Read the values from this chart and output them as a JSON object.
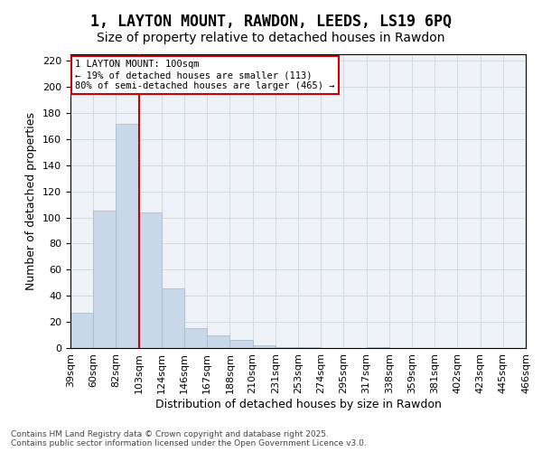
{
  "title": "1, LAYTON MOUNT, RAWDON, LEEDS, LS19 6PQ",
  "subtitle": "Size of property relative to detached houses in Rawdon",
  "xlabel": "Distribution of detached houses by size in Rawdon",
  "ylabel": "Number of detached properties",
  "footer_line1": "Contains HM Land Registry data © Crown copyright and database right 2025.",
  "footer_line2": "Contains public sector information licensed under the Open Government Licence v3.0.",
  "bin_labels": [
    "39sqm",
    "60sqm",
    "82sqm",
    "103sqm",
    "124sqm",
    "146sqm",
    "167sqm",
    "188sqm",
    "210sqm",
    "231sqm",
    "253sqm",
    "274sqm",
    "295sqm",
    "317sqm",
    "338sqm",
    "359sqm",
    "381sqm",
    "402sqm",
    "423sqm",
    "445sqm",
    "466sqm"
  ],
  "bar_values": [
    27,
    105,
    172,
    104,
    46,
    15,
    10,
    6,
    2,
    1,
    1,
    0,
    0,
    1,
    0,
    0,
    0,
    0,
    0,
    0
  ],
  "bar_color": "#c8d8e8",
  "bar_edgecolor": "#a0b8cc",
  "vline_color": "#cc0000",
  "annotation_title": "1 LAYTON MOUNT: 100sqm",
  "annotation_line2": "← 19% of detached houses are smaller (113)",
  "annotation_line3": "80% of semi-detached houses are larger (465) →",
  "annotation_box_color": "#cc0000",
  "ylim": [
    0,
    225
  ],
  "yticks": [
    0,
    20,
    40,
    60,
    80,
    100,
    120,
    140,
    160,
    180,
    200,
    220
  ],
  "title_fontsize": 12,
  "subtitle_fontsize": 10,
  "axis_fontsize": 9,
  "tick_fontsize": 8
}
